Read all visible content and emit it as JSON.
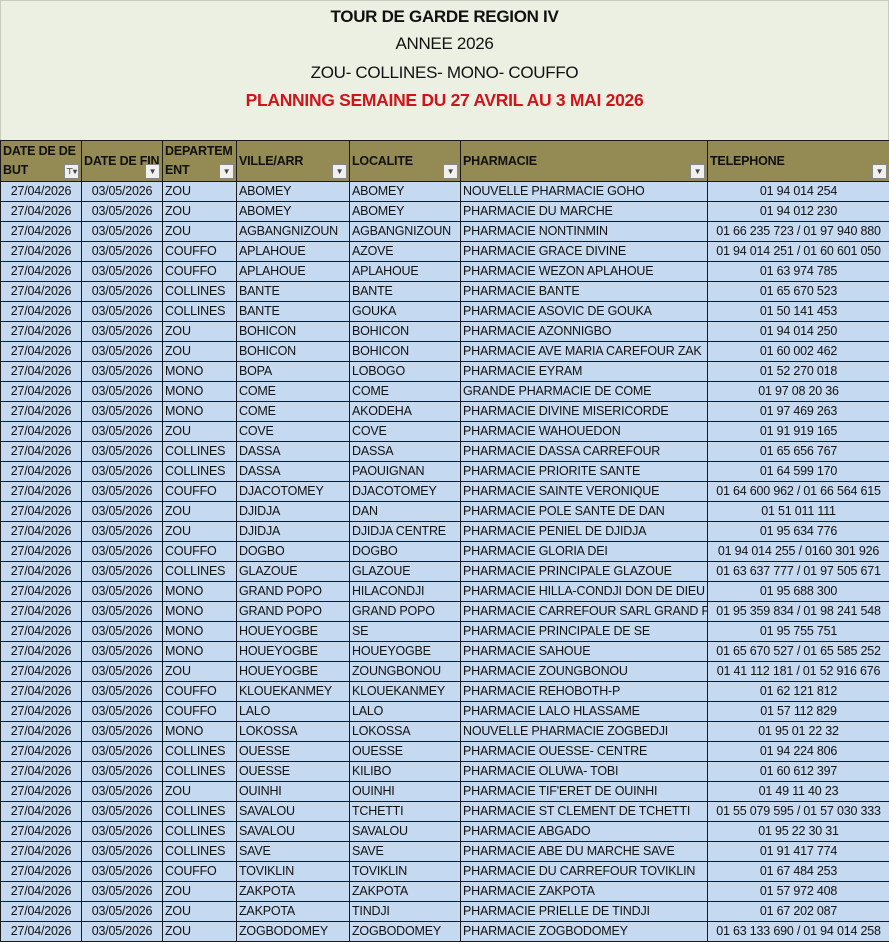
{
  "title": {
    "line1": "TOUR DE GARDE REGION IV",
    "line2": "ANNEE 2026",
    "line3": "ZOU- COLLINES- MONO- COUFFO",
    "line4": "PLANNING SEMAINE DU 27 AVRIL   AU 3 MAI 2026"
  },
  "colors": {
    "header_bg": "#948a54",
    "row_bg": "#c5d9f1",
    "title_red": "#d0141a"
  },
  "columns": [
    {
      "label": "DATE DE DEBUT",
      "filter_icon": "filter-applied-icon"
    },
    {
      "label": "DATE DE FIN",
      "filter_icon": "dropdown-arrow-icon"
    },
    {
      "label": "DEPARTEMENT",
      "filter_icon": "dropdown-arrow-icon"
    },
    {
      "label": "VILLE/ARR",
      "filter_icon": "dropdown-arrow-icon"
    },
    {
      "label": "LOCALITE",
      "filter_icon": "dropdown-arrow-icon"
    },
    {
      "label": "PHARMACIE",
      "filter_icon": "dropdown-arrow-icon"
    },
    {
      "label": "TELEPHONE",
      "filter_icon": "dropdown-arrow-icon"
    }
  ],
  "rows": [
    [
      "27/04/2026",
      "03/05/2026",
      "ZOU",
      "ABOMEY",
      "ABOMEY",
      "NOUVELLE PHARMACIE GOHO",
      "01 94 014 254"
    ],
    [
      "27/04/2026",
      "03/05/2026",
      "ZOU",
      "ABOMEY",
      "ABOMEY",
      "PHARMACIE DU MARCHE",
      "01 94 012 230"
    ],
    [
      "27/04/2026",
      "03/05/2026",
      "ZOU",
      "AGBANGNIZOUN",
      "AGBANGNIZOUN",
      "PHARMACIE NONTINMIN",
      "01 66 235 723 / 01 97 940 880"
    ],
    [
      "27/04/2026",
      "03/05/2026",
      "COUFFO",
      "APLAHOUE",
      "AZOVE",
      "PHARMACIE GRACE DIVINE",
      "01 94 014 251 / 01 60 601 050"
    ],
    [
      "27/04/2026",
      "03/05/2026",
      "COUFFO",
      "APLAHOUE",
      "APLAHOUE",
      "PHARMACIE WEZON APLAHOUE",
      "01 63 974 785"
    ],
    [
      "27/04/2026",
      "03/05/2026",
      "COLLINES",
      "BANTE",
      "BANTE",
      "PHARMACIE BANTE",
      "01 65 670 523"
    ],
    [
      "27/04/2026",
      "03/05/2026",
      "COLLINES",
      "BANTE",
      "GOUKA",
      "PHARMACIE ASOVIC DE GOUKA",
      "01 50 141 453"
    ],
    [
      "27/04/2026",
      "03/05/2026",
      "ZOU",
      "BOHICON",
      "BOHICON",
      "PHARMACIE AZONNIGBO",
      "01 94 014 250"
    ],
    [
      "27/04/2026",
      "03/05/2026",
      "ZOU",
      "BOHICON",
      "BOHICON",
      "PHARMACIE AVE MARIA CAREFOUR ZAK",
      "01 60 002 462"
    ],
    [
      "27/04/2026",
      "03/05/2026",
      "MONO",
      "BOPA",
      "LOBOGO",
      "PHARMACIE EYRAM",
      "01 52 270 018"
    ],
    [
      "27/04/2026",
      "03/05/2026",
      "MONO",
      "COME",
      "COME",
      "GRANDE PHARMACIE DE COME",
      "01 97 08 20 36"
    ],
    [
      "27/04/2026",
      "03/05/2026",
      "MONO",
      "COME",
      "AKODEHA",
      "PHARMACIE DIVINE MISERICORDE",
      "01 97 469 263"
    ],
    [
      "27/04/2026",
      "03/05/2026",
      "ZOU",
      "COVE",
      "COVE",
      "PHARMACIE WAHOUEDON",
      "01 91 919 165"
    ],
    [
      "27/04/2026",
      "03/05/2026",
      "COLLINES",
      "DASSA",
      "DASSA",
      "PHARMACIE DASSA CARREFOUR",
      "01 65 656 767"
    ],
    [
      "27/04/2026",
      "03/05/2026",
      "COLLINES",
      "DASSA",
      "PAOUIGNAN",
      "PHARMACIE PRIORITE SANTE",
      "01 64 599 170"
    ],
    [
      "27/04/2026",
      "03/05/2026",
      "COUFFO",
      "DJACOTOMEY",
      "DJACOTOMEY",
      "PHARMACIE SAINTE VERONIQUE",
      "01 64 600 962 /  01 66 564 615"
    ],
    [
      "27/04/2026",
      "03/05/2026",
      "ZOU",
      "DJIDJA",
      "DAN",
      "PHARMACIE POLE SANTE DE DAN",
      "01 51 011 111"
    ],
    [
      "27/04/2026",
      "03/05/2026",
      "ZOU",
      "DJIDJA",
      "DJIDJA CENTRE",
      "PHARMACIE PENIEL DE DJIDJA",
      "01 95 634 776"
    ],
    [
      "27/04/2026",
      "03/05/2026",
      "COUFFO",
      "DOGBO",
      "DOGBO",
      "PHARMACIE GLORIA DEI",
      "01 94 014 255 / 0160 301 926"
    ],
    [
      "27/04/2026",
      "03/05/2026",
      "COLLINES",
      "GLAZOUE",
      "GLAZOUE",
      "PHARMACIE PRINCIPALE GLAZOUE",
      "01 63 637 777 / 01 97 505 671"
    ],
    [
      "27/04/2026",
      "03/05/2026",
      "MONO",
      "GRAND POPO",
      "HILACONDJI",
      "PHARMACIE HILLA-CONDJI DON DE DIEU",
      "01 95 688 300"
    ],
    [
      "27/04/2026",
      "03/05/2026",
      "MONO",
      "GRAND POPO",
      "GRAND POPO",
      "PHARMACIE CARREFOUR SARL GRAND P",
      "01 95 359 834 / 01 98 241 548"
    ],
    [
      "27/04/2026",
      "03/05/2026",
      "MONO",
      "HOUEYOGBE",
      "SE",
      "PHARMACIE PRINCIPALE DE SE",
      "01 95 755 751"
    ],
    [
      "27/04/2026",
      "03/05/2026",
      "MONO",
      "HOUEYOGBE",
      "HOUEYOGBE",
      "PHARMACIE SAHOUE",
      "01 65 670 527 / 01 65 585 252"
    ],
    [
      "27/04/2026",
      "03/05/2026",
      "ZOU",
      "HOUEYOGBE",
      "ZOUNGBONOU",
      "PHARMACIE ZOUNGBONOU",
      "01 41 112 181 / 01 52 916 676"
    ],
    [
      "27/04/2026",
      "03/05/2026",
      "COUFFO",
      "KLOUEKANMEY",
      "KLOUEKANMEY",
      "PHARMACIE REHOBOTH-P",
      "01 62 121 812"
    ],
    [
      "27/04/2026",
      "03/05/2026",
      "COUFFO",
      "LALO",
      "LALO",
      "PHARMACIE LALO HLASSAME",
      "01 57 112 829"
    ],
    [
      "27/04/2026",
      "03/05/2026",
      "MONO",
      "LOKOSSA",
      "LOKOSSA",
      "NOUVELLE PHARMACIE ZOGBEDJI",
      "01 95 01 22 32"
    ],
    [
      "27/04/2026",
      "03/05/2026",
      "COLLINES",
      "OUESSE",
      "OUESSE",
      "PHARMACIE OUESSE- CENTRE",
      "01 94 224 806"
    ],
    [
      "27/04/2026",
      "03/05/2026",
      "COLLINES",
      "OUESSE",
      "KILIBO",
      "PHARMACIE OLUWA- TOBI",
      "01 60 612 397"
    ],
    [
      "27/04/2026",
      "03/05/2026",
      "ZOU",
      "OUINHI",
      "OUINHI",
      "PHARMACIE TIF'ERET DE OUINHI",
      "01 49 11 40 23"
    ],
    [
      "27/04/2026",
      "03/05/2026",
      "COLLINES",
      "SAVALOU",
      "TCHETTI",
      "PHARMACIE ST CLEMENT DE TCHETTI",
      "01 55 079 595 / 01 57 030 333"
    ],
    [
      "27/04/2026",
      "03/05/2026",
      "COLLINES",
      "SAVALOU",
      "SAVALOU",
      "PHARMACIE ABGADO",
      "01 95 22 30 31"
    ],
    [
      "27/04/2026",
      "03/05/2026",
      "COLLINES",
      "SAVE",
      "SAVE",
      "PHARMACIE ABE DU MARCHE SAVE",
      "01 91 417 774"
    ],
    [
      "27/04/2026",
      "03/05/2026",
      "COUFFO",
      "TOVIKLIN",
      "TOVIKLIN",
      "PHARMACIE DU CARREFOUR TOVIKLIN",
      "01 67 484 253"
    ],
    [
      "27/04/2026",
      "03/05/2026",
      "ZOU",
      "ZAKPOTA",
      "ZAKPOTA",
      "PHARMACIE ZAKPOTA",
      "01 57 972 408"
    ],
    [
      "27/04/2026",
      "03/05/2026",
      "ZOU",
      "ZAKPOTA",
      "TINDJI",
      "PHARMACIE PRIELLE DE TINDJI",
      "01 67 202 087"
    ],
    [
      "27/04/2026",
      "03/05/2026",
      "ZOU",
      "ZOGBODOMEY",
      "ZOGBODOMEY",
      "PHARMACIE ZOGBODOMEY",
      "01 63 133 690 / 01 94 014 258"
    ]
  ]
}
